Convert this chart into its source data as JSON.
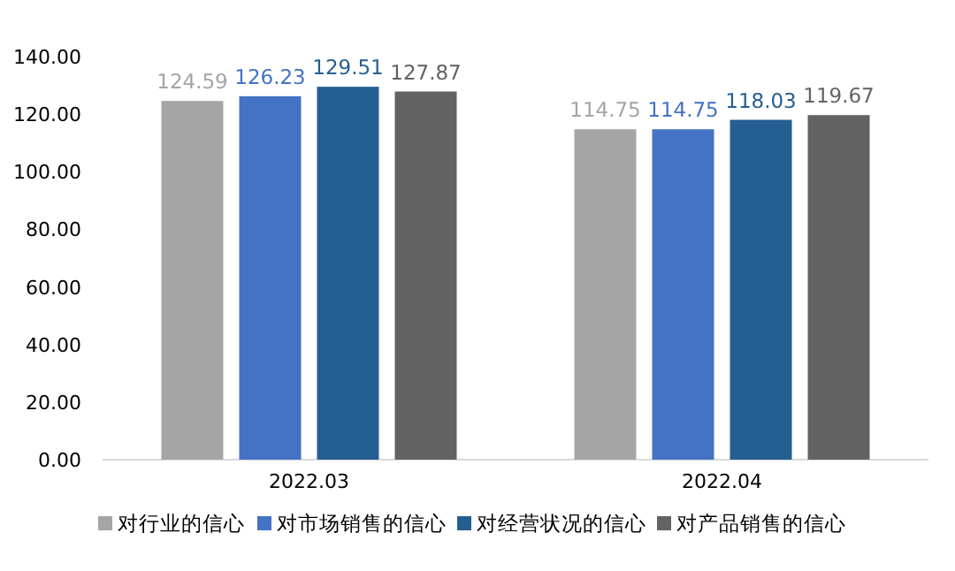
{
  "chart_data": {
    "type": "bar",
    "categories": [
      "2022.03",
      "2022.04"
    ],
    "series": [
      {
        "name": "对行业的信心",
        "color": "#a5a5a5",
        "values": [
          124.59,
          114.75
        ]
      },
      {
        "name": "对市场销售的信心",
        "color": "#4472c4",
        "values": [
          126.23,
          114.75
        ]
      },
      {
        "name": "对经营状况的信心",
        "color": "#255e91",
        "values": [
          129.51,
          118.03
        ]
      },
      {
        "name": "对产品销售的信心",
        "color": "#636363",
        "values": [
          127.87,
          119.67
        ]
      }
    ],
    "ylim": [
      0,
      140
    ],
    "yticks": [
      {
        "value": 0,
        "label": "0.00"
      },
      {
        "value": 20,
        "label": "20.00"
      },
      {
        "value": 40,
        "label": "40.00"
      },
      {
        "value": 60,
        "label": "60.00"
      },
      {
        "value": 80,
        "label": "80.00"
      },
      {
        "value": 100,
        "label": "100.00"
      },
      {
        "value": 120,
        "label": "120.00"
      },
      {
        "value": 140,
        "label": "140.00"
      }
    ],
    "data_labels": true,
    "legend": "bottom"
  }
}
